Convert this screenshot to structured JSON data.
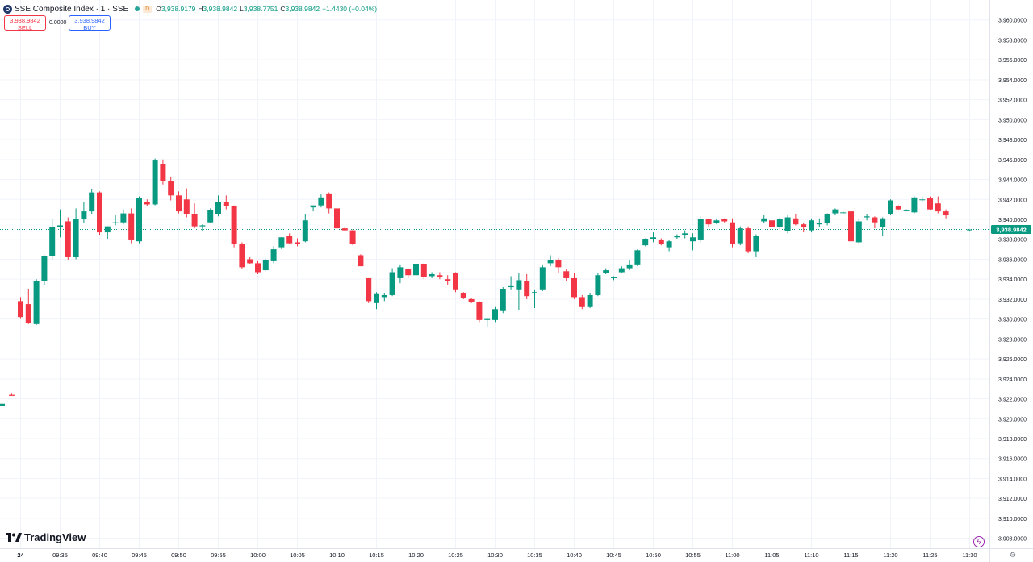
{
  "header": {
    "title": "SSE Composite Index · 1 · SSE",
    "delay_badge": "D",
    "open_label": "O",
    "open_value": "3,938.9179",
    "high_label": "H",
    "high_value": "3,938.9842",
    "low_label": "L",
    "low_value": "3,938.7751",
    "close_label": "C",
    "close_value": "3,938.9842",
    "change": "−1.4430 (−0.04%)"
  },
  "trade": {
    "sell_price": "3,938.9842",
    "sell_label": "SELL",
    "spread": "0.0000",
    "buy_price": "3,938.9842",
    "buy_label": "BUY"
  },
  "branding": {
    "logo_text": "TradingView"
  },
  "colors": {
    "up": "#089981",
    "down": "#f23645",
    "last_price": "#089981",
    "grid": "#f0f3fa"
  },
  "chart_data": {
    "type": "candlestick",
    "symbol": "SSE Composite Index",
    "interval": "1",
    "ylim": [
      3907,
      3962
    ],
    "y_ticks": [
      "3,908.0000",
      "3,910.0000",
      "3,912.0000",
      "3,914.0000",
      "3,916.0000",
      "3,918.0000",
      "3,920.0000",
      "3,922.0000",
      "3,924.0000",
      "3,926.0000",
      "3,928.0000",
      "3,930.0000",
      "3,932.0000",
      "3,934.0000",
      "3,936.0000",
      "3,938.0000",
      "3,940.0000",
      "3,942.0000",
      "3,944.0000",
      "3,946.0000",
      "3,948.0000",
      "3,950.0000",
      "3,952.0000",
      "3,954.0000",
      "3,956.0000",
      "3,958.0000",
      "3,960.0000"
    ],
    "x_ticks": [
      "24",
      "09:35",
      "09:40",
      "09:45",
      "09:50",
      "09:55",
      "10:00",
      "10:05",
      "10:10",
      "10:15",
      "10:20",
      "10:25",
      "10:30",
      "10:35",
      "10:40",
      "10:45",
      "10:50",
      "10:55",
      "11:00",
      "11:05",
      "11:10",
      "11:15",
      "11:20",
      "11:25",
      "11:30"
    ],
    "last_price": "3,938.9842",
    "candles": [
      {
        "t": "09:25",
        "o": 3921.3,
        "h": 3921.5,
        "l": 3921.1,
        "c": 3921.5
      },
      {
        "t": "09:26",
        "o": 3922.4,
        "h": 3922.5,
        "l": 3922.3,
        "c": 3922.3
      },
      {
        "t": "09:30",
        "o": 3931.8,
        "h": 3932.2,
        "l": 3930.0,
        "c": 3930.2
      },
      {
        "t": "09:31",
        "o": 3931.5,
        "h": 3933.0,
        "l": 3929.5,
        "c": 3929.6
      },
      {
        "t": "09:32",
        "o": 3929.5,
        "h": 3934.0,
        "l": 3929.4,
        "c": 3933.8
      },
      {
        "t": "09:33",
        "o": 3933.8,
        "h": 3936.4,
        "l": 3933.4,
        "c": 3936.3
      },
      {
        "t": "09:34",
        "o": 3936.3,
        "h": 3940.0,
        "l": 3936.0,
        "c": 3939.2
      },
      {
        "t": "09:35",
        "o": 3939.2,
        "h": 3941.0,
        "l": 3938.2,
        "c": 3939.4
      },
      {
        "t": "09:36",
        "o": 3939.8,
        "h": 3940.2,
        "l": 3935.9,
        "c": 3936.2
      },
      {
        "t": "09:37",
        "o": 3936.2,
        "h": 3941.1,
        "l": 3936.0,
        "c": 3940.0
      },
      {
        "t": "09:38",
        "o": 3940.0,
        "h": 3941.7,
        "l": 3939.6,
        "c": 3940.8
      },
      {
        "t": "09:39",
        "o": 3940.8,
        "h": 3943.0,
        "l": 3940.5,
        "c": 3942.7
      },
      {
        "t": "09:40",
        "o": 3942.7,
        "h": 3942.8,
        "l": 3938.4,
        "c": 3938.7
      },
      {
        "t": "09:41",
        "o": 3938.7,
        "h": 3939.3,
        "l": 3938.0,
        "c": 3939.3
      },
      {
        "t": "09:42",
        "o": 3939.7,
        "h": 3940.4,
        "l": 3939.4,
        "c": 3939.7
      },
      {
        "t": "09:43",
        "o": 3939.7,
        "h": 3941.0,
        "l": 3939.5,
        "c": 3940.6
      },
      {
        "t": "09:44",
        "o": 3940.6,
        "h": 3941.1,
        "l": 3937.6,
        "c": 3937.9
      },
      {
        "t": "09:45",
        "o": 3937.8,
        "h": 3942.3,
        "l": 3937.6,
        "c": 3942.1
      },
      {
        "t": "09:46",
        "o": 3941.7,
        "h": 3942.0,
        "l": 3941.3,
        "c": 3941.5
      },
      {
        "t": "09:47",
        "o": 3941.5,
        "h": 3946.1,
        "l": 3941.4,
        "c": 3945.9
      },
      {
        "t": "09:48",
        "o": 3945.5,
        "h": 3946.0,
        "l": 3943.5,
        "c": 3943.8
      },
      {
        "t": "09:49",
        "o": 3943.8,
        "h": 3944.3,
        "l": 3941.9,
        "c": 3942.4
      },
      {
        "t": "09:50",
        "o": 3942.4,
        "h": 3942.8,
        "l": 3940.6,
        "c": 3940.8
      },
      {
        "t": "09:51",
        "o": 3942.0,
        "h": 3943.1,
        "l": 3940.2,
        "c": 3940.5
      },
      {
        "t": "09:52",
        "o": 3940.5,
        "h": 3941.6,
        "l": 3939.1,
        "c": 3939.3
      },
      {
        "t": "09:53",
        "o": 3939.3,
        "h": 3939.5,
        "l": 3938.8,
        "c": 3939.4
      },
      {
        "t": "09:54",
        "o": 3939.7,
        "h": 3941.1,
        "l": 3939.6,
        "c": 3940.9
      },
      {
        "t": "09:55",
        "o": 3940.5,
        "h": 3942.4,
        "l": 3940.3,
        "c": 3941.7
      },
      {
        "t": "09:56",
        "o": 3941.7,
        "h": 3942.4,
        "l": 3941.0,
        "c": 3941.3
      },
      {
        "t": "09:57",
        "o": 3941.3,
        "h": 3941.4,
        "l": 3937.2,
        "c": 3937.5
      },
      {
        "t": "09:58",
        "o": 3937.5,
        "h": 3937.7,
        "l": 3935.0,
        "c": 3935.2
      },
      {
        "t": "09:59",
        "o": 3936.0,
        "h": 3936.2,
        "l": 3935.5,
        "c": 3935.6
      },
      {
        "t": "10:00",
        "o": 3935.6,
        "h": 3935.8,
        "l": 3934.5,
        "c": 3934.7
      },
      {
        "t": "10:01",
        "o": 3934.9,
        "h": 3936.1,
        "l": 3934.8,
        "c": 3935.9
      },
      {
        "t": "10:02",
        "o": 3935.8,
        "h": 3937.3,
        "l": 3935.6,
        "c": 3937.0
      },
      {
        "t": "10:03",
        "o": 3937.2,
        "h": 3938.2,
        "l": 3937.0,
        "c": 3938.2
      },
      {
        "t": "10:04",
        "o": 3938.3,
        "h": 3938.6,
        "l": 3937.5,
        "c": 3937.6
      },
      {
        "t": "10:05",
        "o": 3937.7,
        "h": 3938.1,
        "l": 3937.3,
        "c": 3937.5
      },
      {
        "t": "10:06",
        "o": 3937.8,
        "h": 3940.5,
        "l": 3937.7,
        "c": 3939.9
      },
      {
        "t": "10:07",
        "o": 3941.2,
        "h": 3941.4,
        "l": 3940.8,
        "c": 3941.4
      },
      {
        "t": "10:08",
        "o": 3941.4,
        "h": 3942.5,
        "l": 3941.2,
        "c": 3942.2
      },
      {
        "t": "10:09",
        "o": 3942.6,
        "h": 3942.7,
        "l": 3940.6,
        "c": 3941.1
      },
      {
        "t": "10:10",
        "o": 3941.1,
        "h": 3941.2,
        "l": 3938.9,
        "c": 3939.1
      },
      {
        "t": "10:11",
        "o": 3939.1,
        "h": 3939.2,
        "l": 3938.8,
        "c": 3938.9
      },
      {
        "t": "10:12",
        "o": 3938.9,
        "h": 3939.0,
        "l": 3937.4,
        "c": 3937.5
      },
      {
        "t": "10:13",
        "o": 3936.4,
        "h": 3936.5,
        "l": 3935.3,
        "c": 3935.3
      },
      {
        "t": "10:14",
        "o": 3934.1,
        "h": 3934.1,
        "l": 3931.6,
        "c": 3931.8
      },
      {
        "t": "10:15",
        "o": 3931.6,
        "h": 3932.7,
        "l": 3931.0,
        "c": 3932.5
      },
      {
        "t": "10:16",
        "o": 3932.2,
        "h": 3932.6,
        "l": 3931.8,
        "c": 3932.4
      },
      {
        "t": "10:17",
        "o": 3932.4,
        "h": 3935.1,
        "l": 3932.3,
        "c": 3934.7
      },
      {
        "t": "10:18",
        "o": 3934.1,
        "h": 3935.4,
        "l": 3933.6,
        "c": 3935.2
      },
      {
        "t": "10:19",
        "o": 3935.0,
        "h": 3935.1,
        "l": 3934.1,
        "c": 3934.4
      },
      {
        "t": "10:20",
        "o": 3934.4,
        "h": 3936.2,
        "l": 3934.3,
        "c": 3935.5
      },
      {
        "t": "10:21",
        "o": 3935.5,
        "h": 3935.6,
        "l": 3934.0,
        "c": 3934.2
      },
      {
        "t": "10:22",
        "o": 3934.3,
        "h": 3934.7,
        "l": 3934.1,
        "c": 3934.5
      },
      {
        "t": "10:23",
        "o": 3934.4,
        "h": 3934.7,
        "l": 3934.0,
        "c": 3934.2
      },
      {
        "t": "10:24",
        "o": 3934.0,
        "h": 3934.4,
        "l": 3933.4,
        "c": 3933.8
      },
      {
        "t": "10:25",
        "o": 3934.6,
        "h": 3934.7,
        "l": 3932.7,
        "c": 3932.9
      },
      {
        "t": "10:26",
        "o": 3932.6,
        "h": 3932.7,
        "l": 3932.0,
        "c": 3932.1
      },
      {
        "t": "10:27",
        "o": 3932.0,
        "h": 3932.1,
        "l": 3931.6,
        "c": 3931.7
      },
      {
        "t": "10:28",
        "o": 3931.7,
        "h": 3931.8,
        "l": 3929.7,
        "c": 3929.9
      },
      {
        "t": "10:29",
        "o": 3929.9,
        "h": 3930.1,
        "l": 3929.2,
        "c": 3930.0
      },
      {
        "t": "10:30",
        "o": 3929.9,
        "h": 3931.2,
        "l": 3929.7,
        "c": 3931.0
      },
      {
        "t": "10:31",
        "o": 3930.8,
        "h": 3933.2,
        "l": 3930.6,
        "c": 3933.0
      },
      {
        "t": "10:32",
        "o": 3933.2,
        "h": 3934.3,
        "l": 3932.9,
        "c": 3933.3
      },
      {
        "t": "10:33",
        "o": 3932.9,
        "h": 3934.6,
        "l": 3930.9,
        "c": 3933.9
      },
      {
        "t": "10:34",
        "o": 3933.8,
        "h": 3934.5,
        "l": 3932.0,
        "c": 3932.3
      },
      {
        "t": "10:35",
        "o": 3932.6,
        "h": 3932.9,
        "l": 3931.1,
        "c": 3932.7
      },
      {
        "t": "10:36",
        "o": 3932.9,
        "h": 3935.4,
        "l": 3932.8,
        "c": 3935.2
      },
      {
        "t": "10:37",
        "o": 3935.6,
        "h": 3936.4,
        "l": 3935.3,
        "c": 3935.9
      },
      {
        "t": "10:38",
        "o": 3935.9,
        "h": 3936.1,
        "l": 3934.6,
        "c": 3935.2
      },
      {
        "t": "10:39",
        "o": 3934.8,
        "h": 3935.0,
        "l": 3933.8,
        "c": 3934.1
      },
      {
        "t": "10:40",
        "o": 3934.1,
        "h": 3934.6,
        "l": 3932.0,
        "c": 3932.2
      },
      {
        "t": "10:41",
        "o": 3932.2,
        "h": 3932.4,
        "l": 3931.0,
        "c": 3931.2
      },
      {
        "t": "10:42",
        "o": 3931.2,
        "h": 3932.6,
        "l": 3931.1,
        "c": 3932.4
      },
      {
        "t": "10:43",
        "o": 3932.4,
        "h": 3934.6,
        "l": 3932.3,
        "c": 3934.4
      },
      {
        "t": "10:44",
        "o": 3934.6,
        "h": 3935.1,
        "l": 3934.5,
        "c": 3934.9
      },
      {
        "t": "10:45",
        "o": 3934.1,
        "h": 3934.3,
        "l": 3933.9,
        "c": 3934.2
      },
      {
        "t": "10:46",
        "o": 3934.7,
        "h": 3935.3,
        "l": 3934.6,
        "c": 3935.1
      },
      {
        "t": "10:47",
        "o": 3935.1,
        "h": 3935.9,
        "l": 3934.9,
        "c": 3935.4
      },
      {
        "t": "10:48",
        "o": 3935.4,
        "h": 3937.0,
        "l": 3935.3,
        "c": 3936.9
      },
      {
        "t": "10:49",
        "o": 3937.4,
        "h": 3938.1,
        "l": 3937.3,
        "c": 3938.0
      },
      {
        "t": "10:50",
        "o": 3938.0,
        "h": 3938.7,
        "l": 3937.7,
        "c": 3938.2
      },
      {
        "t": "10:51",
        "o": 3937.9,
        "h": 3938.1,
        "l": 3937.4,
        "c": 3937.5
      },
      {
        "t": "10:52",
        "o": 3937.2,
        "h": 3937.9,
        "l": 3936.8,
        "c": 3937.8
      },
      {
        "t": "10:53",
        "o": 3938.2,
        "h": 3938.5,
        "l": 3938.0,
        "c": 3938.3
      },
      {
        "t": "10:54",
        "o": 3938.4,
        "h": 3938.9,
        "l": 3938.1,
        "c": 3938.6
      },
      {
        "t": "10:55",
        "o": 3937.8,
        "h": 3938.6,
        "l": 3936.9,
        "c": 3938.2
      },
      {
        "t": "10:56",
        "o": 3937.9,
        "h": 3940.3,
        "l": 3937.7,
        "c": 3940.0
      },
      {
        "t": "10:57",
        "o": 3940.0,
        "h": 3940.1,
        "l": 3939.2,
        "c": 3939.5
      },
      {
        "t": "10:58",
        "o": 3939.6,
        "h": 3940.1,
        "l": 3939.5,
        "c": 3939.9
      },
      {
        "t": "10:59",
        "o": 3940.0,
        "h": 3940.1,
        "l": 3939.7,
        "c": 3939.8
      },
      {
        "t": "11:00",
        "o": 3939.7,
        "h": 3940.1,
        "l": 3937.2,
        "c": 3937.5
      },
      {
        "t": "11:01",
        "o": 3937.6,
        "h": 3939.3,
        "l": 3937.4,
        "c": 3939.1
      },
      {
        "t": "11:02",
        "o": 3939.1,
        "h": 3939.3,
        "l": 3936.6,
        "c": 3936.8
      },
      {
        "t": "11:03",
        "o": 3936.8,
        "h": 3938.5,
        "l": 3936.2,
        "c": 3938.3
      },
      {
        "t": "11:04",
        "o": 3939.8,
        "h": 3940.4,
        "l": 3939.6,
        "c": 3940.1
      },
      {
        "t": "11:05",
        "o": 3939.9,
        "h": 3940.1,
        "l": 3938.7,
        "c": 3939.2
      },
      {
        "t": "11:06",
        "o": 3939.2,
        "h": 3940.2,
        "l": 3939.0,
        "c": 3940.0
      },
      {
        "t": "11:07",
        "o": 3938.8,
        "h": 3940.4,
        "l": 3938.6,
        "c": 3940.2
      },
      {
        "t": "11:08",
        "o": 3940.1,
        "h": 3940.5,
        "l": 3939.4,
        "c": 3939.5
      },
      {
        "t": "11:09",
        "o": 3939.5,
        "h": 3939.6,
        "l": 3938.7,
        "c": 3939.2
      },
      {
        "t": "11:10",
        "o": 3938.9,
        "h": 3940.1,
        "l": 3938.7,
        "c": 3939.9
      },
      {
        "t": "11:11",
        "o": 3939.5,
        "h": 3940.1,
        "l": 3939.2,
        "c": 3939.6
      },
      {
        "t": "11:12",
        "o": 3939.6,
        "h": 3940.6,
        "l": 3939.4,
        "c": 3940.5
      },
      {
        "t": "11:13",
        "o": 3940.6,
        "h": 3941.1,
        "l": 3940.4,
        "c": 3941.0
      },
      {
        "t": "11:14",
        "o": 3940.7,
        "h": 3940.8,
        "l": 3940.6,
        "c": 3940.7
      },
      {
        "t": "11:15",
        "o": 3940.8,
        "h": 3940.9,
        "l": 3937.5,
        "c": 3937.8
      },
      {
        "t": "11:16",
        "o": 3937.7,
        "h": 3940.1,
        "l": 3937.6,
        "c": 3939.8
      },
      {
        "t": "11:17",
        "o": 3940.2,
        "h": 3940.5,
        "l": 3939.9,
        "c": 3940.3
      },
      {
        "t": "11:18",
        "o": 3940.2,
        "h": 3940.3,
        "l": 3939.1,
        "c": 3939.7
      },
      {
        "t": "11:19",
        "o": 3939.2,
        "h": 3940.2,
        "l": 3938.3,
        "c": 3940.1
      },
      {
        "t": "11:20",
        "o": 3940.5,
        "h": 3942.0,
        "l": 3940.4,
        "c": 3941.9
      },
      {
        "t": "11:21",
        "o": 3941.3,
        "h": 3941.4,
        "l": 3940.9,
        "c": 3941.0
      },
      {
        "t": "11:22",
        "o": 3940.9,
        "h": 3941.0,
        "l": 3940.8,
        "c": 3940.9
      },
      {
        "t": "11:23",
        "o": 3940.7,
        "h": 3942.3,
        "l": 3940.6,
        "c": 3942.2
      },
      {
        "t": "11:24",
        "o": 3942.0,
        "h": 3942.3,
        "l": 3941.7,
        "c": 3942.0
      },
      {
        "t": "11:25",
        "o": 3942.1,
        "h": 3942.3,
        "l": 3940.9,
        "c": 3941.0
      },
      {
        "t": "11:26",
        "o": 3941.6,
        "h": 3942.3,
        "l": 3940.6,
        "c": 3940.8
      },
      {
        "t": "11:27",
        "o": 3940.8,
        "h": 3941.0,
        "l": 3940.1,
        "c": 3940.4
      },
      {
        "t": "11:30",
        "o": 3938.9179,
        "h": 3938.9842,
        "l": 3938.7751,
        "c": 3938.9842
      }
    ]
  }
}
